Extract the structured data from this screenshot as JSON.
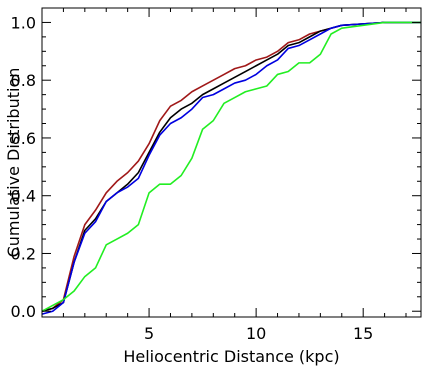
{
  "chart_data": {
    "type": "line",
    "title": "",
    "xlabel": "Heliocentric Distance (kpc)",
    "ylabel": "Cumulative Distribution",
    "xlim": [
      0,
      17.7
    ],
    "ylim": [
      -0.02,
      1.05
    ],
    "x_ticks": [
      5,
      10,
      15
    ],
    "x_tick_labels": [
      "5",
      "10",
      "15"
    ],
    "y_ticks": [
      0.0,
      0.2,
      0.4,
      0.6,
      0.8,
      1.0
    ],
    "y_tick_labels": [
      "0.0",
      "0.2",
      "0.4",
      "0.6",
      "0.8",
      "1.0"
    ],
    "grid": false,
    "legend": "none",
    "series": [
      {
        "color": "#a01818",
        "x": [
          0,
          0.5,
          1.0,
          1.5,
          2.0,
          2.5,
          3.0,
          3.5,
          4.0,
          4.5,
          5.0,
          5.5,
          6.0,
          6.5,
          7.0,
          7.5,
          8.0,
          8.5,
          9.0,
          9.5,
          10.0,
          10.5,
          11.0,
          11.5,
          12.0,
          12.5,
          13.0,
          13.5,
          14.0,
          15.0,
          16.0,
          17.0,
          17.7
        ],
        "y": [
          0.0,
          0.01,
          0.04,
          0.19,
          0.3,
          0.35,
          0.41,
          0.45,
          0.48,
          0.52,
          0.58,
          0.66,
          0.71,
          0.73,
          0.76,
          0.78,
          0.8,
          0.82,
          0.84,
          0.85,
          0.87,
          0.88,
          0.9,
          0.93,
          0.94,
          0.96,
          0.97,
          0.98,
          0.99,
          0.995,
          1.0,
          1.0,
          1.0
        ]
      },
      {
        "color": "#000000",
        "x": [
          0,
          0.5,
          1.0,
          1.5,
          2.0,
          2.5,
          3.0,
          3.5,
          4.0,
          4.5,
          5.0,
          5.5,
          6.0,
          6.5,
          7.0,
          7.5,
          8.0,
          8.5,
          9.0,
          9.5,
          10.0,
          10.5,
          11.0,
          11.5,
          12.0,
          12.5,
          13.0,
          13.5,
          14.0,
          15.0,
          16.0,
          17.0,
          17.7
        ],
        "y": [
          0.0,
          0.01,
          0.03,
          0.17,
          0.28,
          0.32,
          0.38,
          0.41,
          0.44,
          0.48,
          0.55,
          0.62,
          0.67,
          0.7,
          0.72,
          0.75,
          0.77,
          0.79,
          0.81,
          0.83,
          0.85,
          0.87,
          0.89,
          0.92,
          0.93,
          0.95,
          0.97,
          0.98,
          0.99,
          0.995,
          1.0,
          1.0,
          1.0
        ]
      },
      {
        "color": "#0000e0",
        "x": [
          0,
          0.5,
          1.0,
          1.5,
          2.0,
          2.5,
          3.0,
          3.5,
          4.0,
          4.5,
          5.0,
          5.5,
          6.0,
          6.5,
          7.0,
          7.5,
          8.0,
          8.5,
          9.0,
          9.5,
          10.0,
          10.5,
          11.0,
          11.5,
          12.0,
          12.5,
          13.0,
          13.5,
          14.0,
          15.0,
          16.0,
          17.0,
          17.7
        ],
        "y": [
          -0.01,
          0.0,
          0.03,
          0.17,
          0.27,
          0.31,
          0.38,
          0.41,
          0.43,
          0.46,
          0.54,
          0.61,
          0.65,
          0.67,
          0.7,
          0.74,
          0.75,
          0.77,
          0.79,
          0.8,
          0.82,
          0.85,
          0.87,
          0.91,
          0.92,
          0.94,
          0.96,
          0.98,
          0.99,
          0.995,
          1.0,
          1.0,
          1.0
        ]
      },
      {
        "color": "#22ee22",
        "x": [
          0,
          0.5,
          1.0,
          1.5,
          2.0,
          2.5,
          3.0,
          3.5,
          4.0,
          4.5,
          5.0,
          5.5,
          6.0,
          6.5,
          7.0,
          7.5,
          8.0,
          8.5,
          9.0,
          9.5,
          10.0,
          10.5,
          11.0,
          11.5,
          12.0,
          12.5,
          13.0,
          13.5,
          14.0,
          15.0,
          16.0,
          17.0,
          17.7
        ],
        "y": [
          0.0,
          0.02,
          0.04,
          0.07,
          0.12,
          0.15,
          0.23,
          0.25,
          0.27,
          0.3,
          0.41,
          0.44,
          0.44,
          0.47,
          0.53,
          0.63,
          0.66,
          0.72,
          0.74,
          0.76,
          0.77,
          0.78,
          0.82,
          0.83,
          0.86,
          0.86,
          0.89,
          0.96,
          0.98,
          0.99,
          1.0,
          1.0,
          1.0
        ]
      }
    ]
  }
}
